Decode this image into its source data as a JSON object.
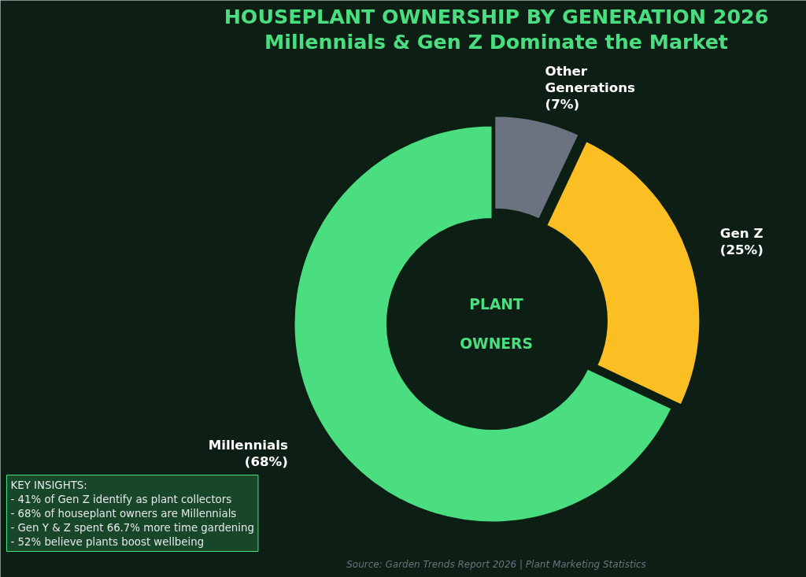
{
  "chart_data": {
    "type": "donut",
    "title": "HOUSEPLANT OWNERSHIP BY GENERATION 2026",
    "subtitle": "Millennials & Gen Z Dominate the Market",
    "categories": [
      "Millennials",
      "Gen Z",
      "Other\nGenerations"
    ],
    "values": [
      68,
      25,
      7
    ],
    "colors": [
      "#4ade80",
      "#fbbf24",
      "#6b7280"
    ],
    "value_labels": [
      "(68%)",
      "(25%)",
      "(7%)"
    ],
    "annotations": [
      "PLANT\nOWNERS",
      "KEY INSIGHTS:\n- 41% of Gen Z identify as plant collectors\n- 68% of houseplant owners are Millennials\n- Gen Y & Z spent 66.7% more time gardening\n- 52% believe plants boost wellbeing",
      "Source: Garden Trends Report 2026 | Plant Marketing Statistics"
    ]
  }
}
